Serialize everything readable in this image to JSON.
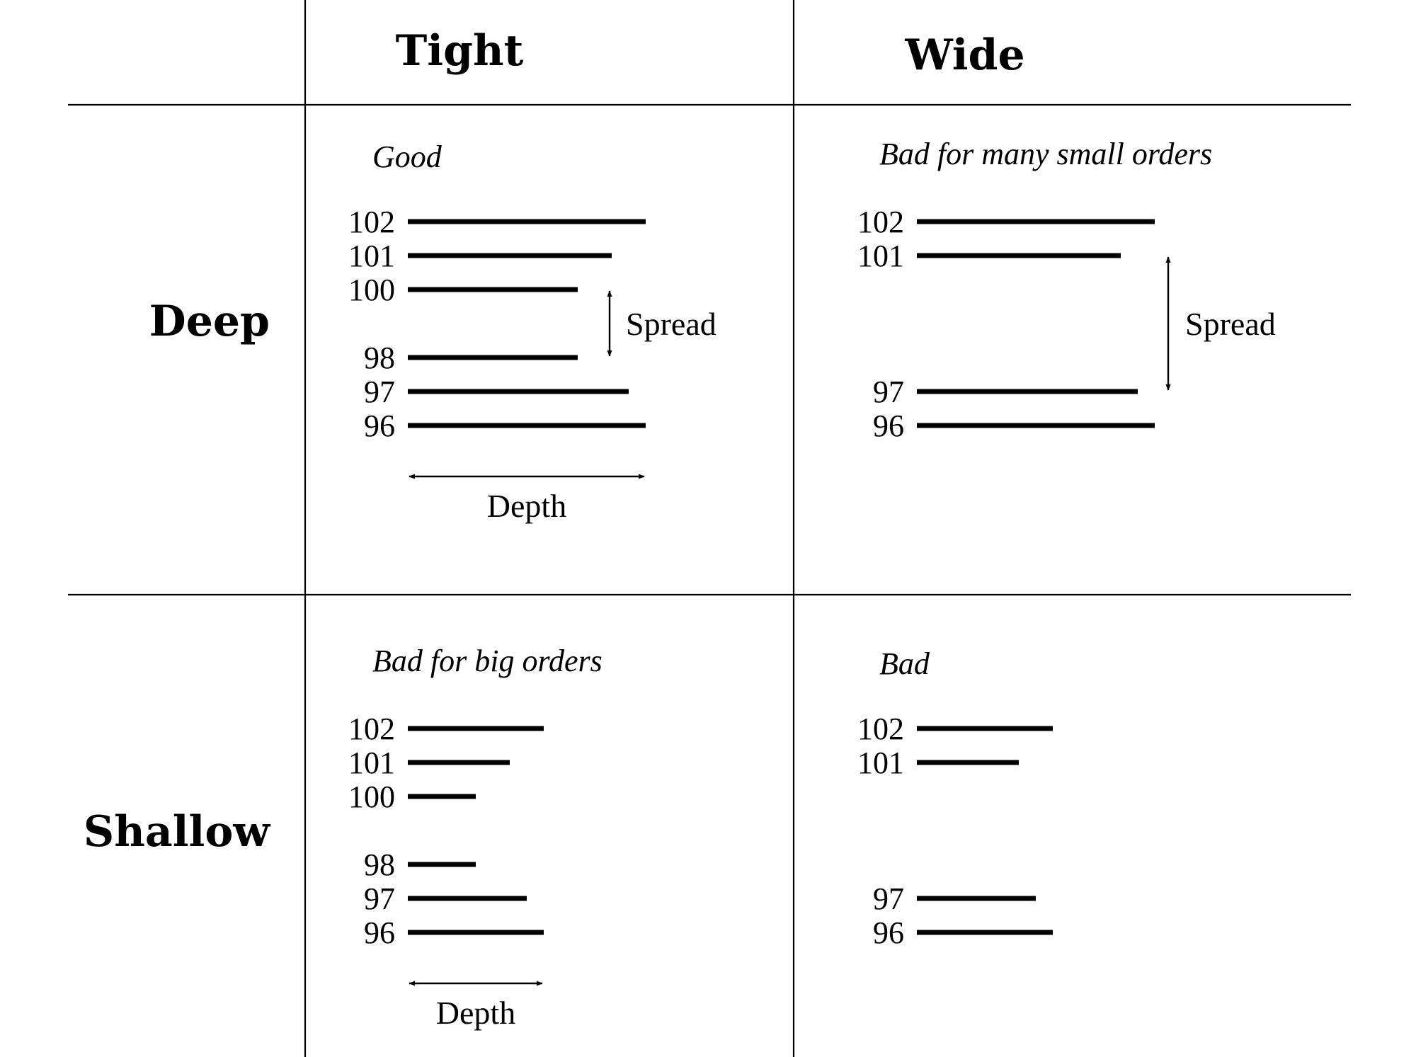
{
  "columns": [
    "Tight",
    "Wide"
  ],
  "rows": [
    "Deep",
    "Shallow"
  ],
  "spread_label": "Spread",
  "depth_label": "Depth",
  "panels": [
    {
      "id": "deep-tight",
      "caption": "Good",
      "levels": [
        {
          "price": "102",
          "depth": 7
        },
        {
          "price": "101",
          "depth": 6
        },
        {
          "price": "100",
          "depth": 5
        },
        {
          "price": "98",
          "depth": 5
        },
        {
          "price": "97",
          "depth": 6.5
        },
        {
          "price": "96",
          "depth": 7
        }
      ]
    },
    {
      "id": "deep-wide",
      "caption": "Bad for many small orders",
      "levels": [
        {
          "price": "102",
          "depth": 7
        },
        {
          "price": "101",
          "depth": 6
        },
        {
          "price": "97",
          "depth": 6.5
        },
        {
          "price": "96",
          "depth": 7
        }
      ]
    },
    {
      "id": "shallow-tight",
      "caption": "Bad for big orders",
      "levels": [
        {
          "price": "102",
          "depth": 4
        },
        {
          "price": "101",
          "depth": 3
        },
        {
          "price": "100",
          "depth": 2
        },
        {
          "price": "98",
          "depth": 2
        },
        {
          "price": "97",
          "depth": 3.5
        },
        {
          "price": "96",
          "depth": 4
        }
      ]
    },
    {
      "id": "shallow-wide",
      "caption": "Bad",
      "levels": [
        {
          "price": "102",
          "depth": 4
        },
        {
          "price": "101",
          "depth": 3
        },
        {
          "price": "97",
          "depth": 3.5
        },
        {
          "price": "96",
          "depth": 4
        }
      ]
    }
  ]
}
